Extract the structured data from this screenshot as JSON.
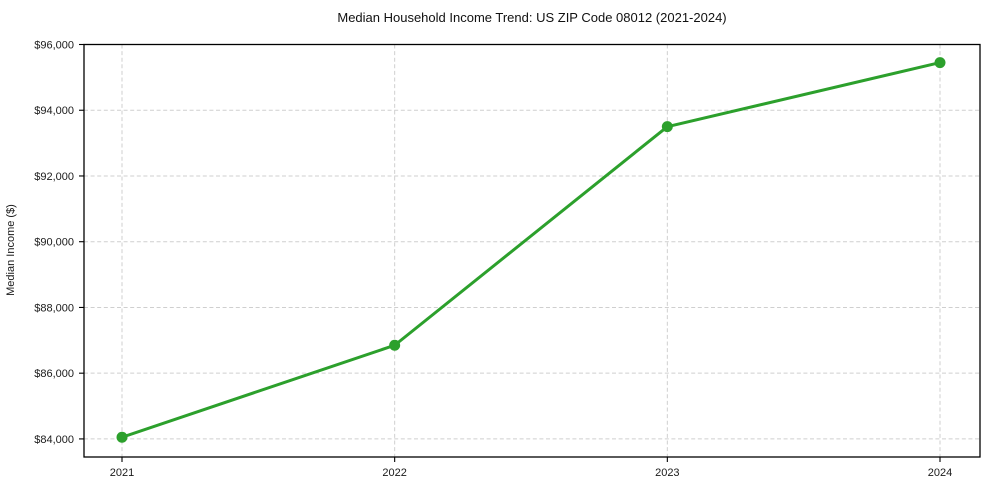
{
  "chart_data": {
    "type": "line",
    "title": "Median Household Income Trend: US ZIP Code 08012 (2021-2024)",
    "xlabel": "",
    "ylabel": "Median Income ($)",
    "categories": [
      "2021",
      "2022",
      "2023",
      "2024"
    ],
    "values": [
      84050,
      86850,
      93500,
      95450
    ],
    "y_ticks": [
      84000,
      86000,
      88000,
      90000,
      92000,
      94000,
      96000
    ],
    "y_tick_labels": [
      "$84,000",
      "$86,000",
      "$88,000",
      "$90,000",
      "$92,000",
      "$94,000",
      "$96,000"
    ],
    "ylim": [
      83450,
      96000
    ],
    "grid": true,
    "grid_style": "dashed",
    "legend_position": "none",
    "line_color": "#2ca02c",
    "marker": "circle",
    "background_color": "#ffffff"
  }
}
